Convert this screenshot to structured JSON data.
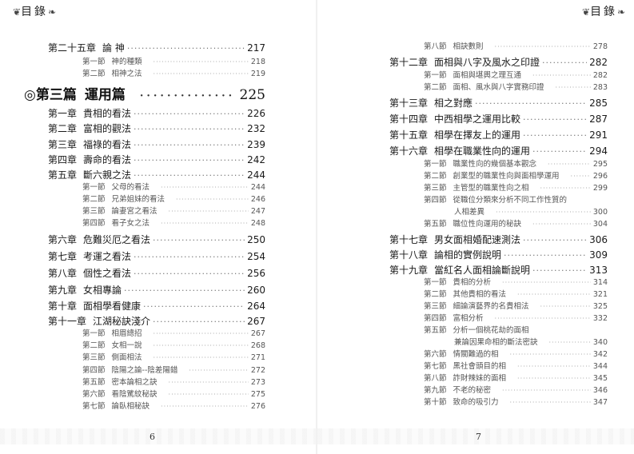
{
  "header": {
    "left_title": "目錄",
    "right_title": "目錄"
  },
  "left_page": {
    "page_number": "6",
    "entries": [
      {
        "level": "chapter",
        "label": "第二十五章",
        "title": "論 神",
        "page": "217"
      },
      {
        "level": "section",
        "label": "第一節",
        "title": "神的種類",
        "page": "218"
      },
      {
        "level": "section",
        "label": "第二節",
        "title": "相神之法",
        "page": "219"
      },
      {
        "level": "part",
        "label": "◎第三篇",
        "title": "運用篇",
        "page": "225"
      },
      {
        "level": "chapter",
        "label": "第一章",
        "title": "貴相的看法",
        "page": "226"
      },
      {
        "level": "chapter",
        "label": "第二章",
        "title": "富相的觀法",
        "page": "232"
      },
      {
        "level": "chapter",
        "label": "第三章",
        "title": "福祿的看法",
        "page": "239"
      },
      {
        "level": "chapter",
        "label": "第四章",
        "title": "壽命的看法",
        "page": "242"
      },
      {
        "level": "chapter",
        "label": "第五章",
        "title": "斷六親之法",
        "page": "244"
      },
      {
        "level": "section",
        "label": "第一節",
        "title": "父母的看法",
        "page": "244"
      },
      {
        "level": "section",
        "label": "第二節",
        "title": "兄弟姐妹的看法",
        "page": "246"
      },
      {
        "level": "section",
        "label": "第三節",
        "title": "論妻宮之看法",
        "page": "247"
      },
      {
        "level": "section",
        "label": "第四節",
        "title": "看子女之法",
        "page": "248"
      },
      {
        "level": "chapter",
        "label": "第六章",
        "title": "危難災厄之看法",
        "page": "250"
      },
      {
        "level": "chapter",
        "label": "第七章",
        "title": "考運之看法",
        "page": "254"
      },
      {
        "level": "chapter",
        "label": "第八章",
        "title": "個性之看法",
        "page": "256"
      },
      {
        "level": "chapter",
        "label": "第九章",
        "title": "女相專論",
        "page": "260"
      },
      {
        "level": "chapter",
        "label": "第十章",
        "title": "面相學看健康",
        "page": "264"
      },
      {
        "level": "chapter",
        "label": "第十一章",
        "title": "江湖秘訣淺介",
        "page": "267"
      },
      {
        "level": "section",
        "label": "第一節",
        "title": "相眉總招",
        "page": "267"
      },
      {
        "level": "section",
        "label": "第二節",
        "title": "女相一說",
        "page": "268"
      },
      {
        "level": "section",
        "label": "第三節",
        "title": "側面相法",
        "page": "271"
      },
      {
        "level": "section",
        "label": "第四節",
        "title": "陰陽之論--陰差陽錯",
        "page": "272"
      },
      {
        "level": "section",
        "label": "第五節",
        "title": "密本論相之訣",
        "page": "273"
      },
      {
        "level": "section",
        "label": "第六節",
        "title": "看陰騭紋秘訣",
        "page": "275"
      },
      {
        "level": "section",
        "label": "第七節",
        "title": "論臥相秘訣",
        "page": "276"
      }
    ]
  },
  "right_page": {
    "page_number": "7",
    "entries": [
      {
        "level": "section",
        "label": "第八節",
        "title": "相訣數則",
        "page": "278"
      },
      {
        "level": "chapter",
        "label": "第十二章",
        "title": "面相與八字及風水之印證",
        "page": "282"
      },
      {
        "level": "section",
        "label": "第一節",
        "title": "面相與堪輿之理互通",
        "page": "282"
      },
      {
        "level": "section",
        "label": "第二節",
        "title": "面相、風水與八字實務印證",
        "page": "283"
      },
      {
        "level": "chapter",
        "label": "第十三章",
        "title": "相之對應",
        "page": "285"
      },
      {
        "level": "chapter",
        "label": "第十四章",
        "title": "中西相學之運用比較",
        "page": "287"
      },
      {
        "level": "chapter",
        "label": "第十五章",
        "title": "相學在擇友上的運用",
        "page": "291"
      },
      {
        "level": "chapter",
        "label": "第十六章",
        "title": "相學在職業性向的運用",
        "page": "294"
      },
      {
        "level": "section",
        "label": "第一節",
        "title": "職業性向的幾個基本觀念",
        "page": "295"
      },
      {
        "level": "section",
        "label": "第二節",
        "title": "創業型的職業性向與面相學運用",
        "page": "296"
      },
      {
        "level": "section",
        "label": "第三節",
        "title": "主管型的職業性向之相",
        "page": "299"
      },
      {
        "level": "section-head",
        "label": "第四節",
        "title": "從職位分類來分析不同工作性質的",
        "page": ""
      },
      {
        "level": "continuation",
        "label": "",
        "title": "人相差異",
        "page": "300"
      },
      {
        "level": "section",
        "label": "第五節",
        "title": "職位性向運用的秘訣",
        "page": "304"
      },
      {
        "level": "chapter",
        "label": "第十七章",
        "title": "男女面相婚配速測法",
        "page": "306"
      },
      {
        "level": "chapter",
        "label": "第十八章",
        "title": "論相的實例說明",
        "page": "309"
      },
      {
        "level": "chapter",
        "label": "第十九章",
        "title": "當紅名人面相論斷說明",
        "page": "313"
      },
      {
        "level": "section",
        "label": "第一節",
        "title": "貴相的分析",
        "page": "314"
      },
      {
        "level": "section",
        "label": "第二節",
        "title": "其他貴相的看法",
        "page": "321"
      },
      {
        "level": "section",
        "label": "第三節",
        "title": "細論演藝界的名貴相法",
        "page": "325"
      },
      {
        "level": "section",
        "label": "第四節",
        "title": "富相分析",
        "page": "332"
      },
      {
        "level": "section-head",
        "label": "第五節",
        "title": "分析一個桃花劫的面相",
        "page": ""
      },
      {
        "level": "continuation",
        "label": "",
        "title": "兼論因果命相的斷法密訣",
        "page": "340"
      },
      {
        "level": "section",
        "label": "第六節",
        "title": "情關難過的相",
        "page": "342"
      },
      {
        "level": "section",
        "label": "第七節",
        "title": "黑社會頭目的相",
        "page": "344"
      },
      {
        "level": "section",
        "label": "第八節",
        "title": "詐財辣妹的面相",
        "page": "345"
      },
      {
        "level": "section",
        "label": "第九節",
        "title": "不老的秘密",
        "page": "346"
      },
      {
        "level": "section",
        "label": "第十節",
        "title": "致命的吸引力",
        "page": "347"
      }
    ]
  }
}
